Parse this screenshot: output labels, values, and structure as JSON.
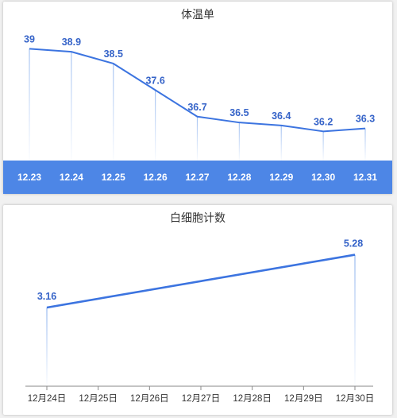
{
  "colors": {
    "line": "#3c74e0",
    "band": "#4d86e6",
    "label": "#3563c8",
    "axis": "#888888"
  },
  "chart_data": [
    {
      "type": "line",
      "title": "体温单",
      "categories": [
        "12.23",
        "12.24",
        "12.25",
        "12.26",
        "12.27",
        "12.28",
        "12.29",
        "12.30",
        "12.31"
      ],
      "values": [
        39,
        38.9,
        38.5,
        37.6,
        36.7,
        36.5,
        36.4,
        36.2,
        36.3
      ],
      "labels": [
        "39",
        "38.9",
        "38.5",
        "37.6",
        "36.7",
        "36.5",
        "36.4",
        "36.2",
        "36.3"
      ],
      "ylim": [
        35.4,
        39.2
      ],
      "grid": false,
      "legend": "none"
    },
    {
      "type": "line",
      "title": "白细胞计数",
      "categories": [
        "12月24日",
        "12月25日",
        "12月26日",
        "12月27日",
        "12月28日",
        "12月29日",
        "12月30日"
      ],
      "x_index": [
        0,
        6
      ],
      "values": [
        3.16,
        5.28
      ],
      "labels": [
        "3.16",
        "5.28"
      ],
      "ylim": [
        0,
        6
      ],
      "grid": false,
      "legend": "none"
    }
  ]
}
